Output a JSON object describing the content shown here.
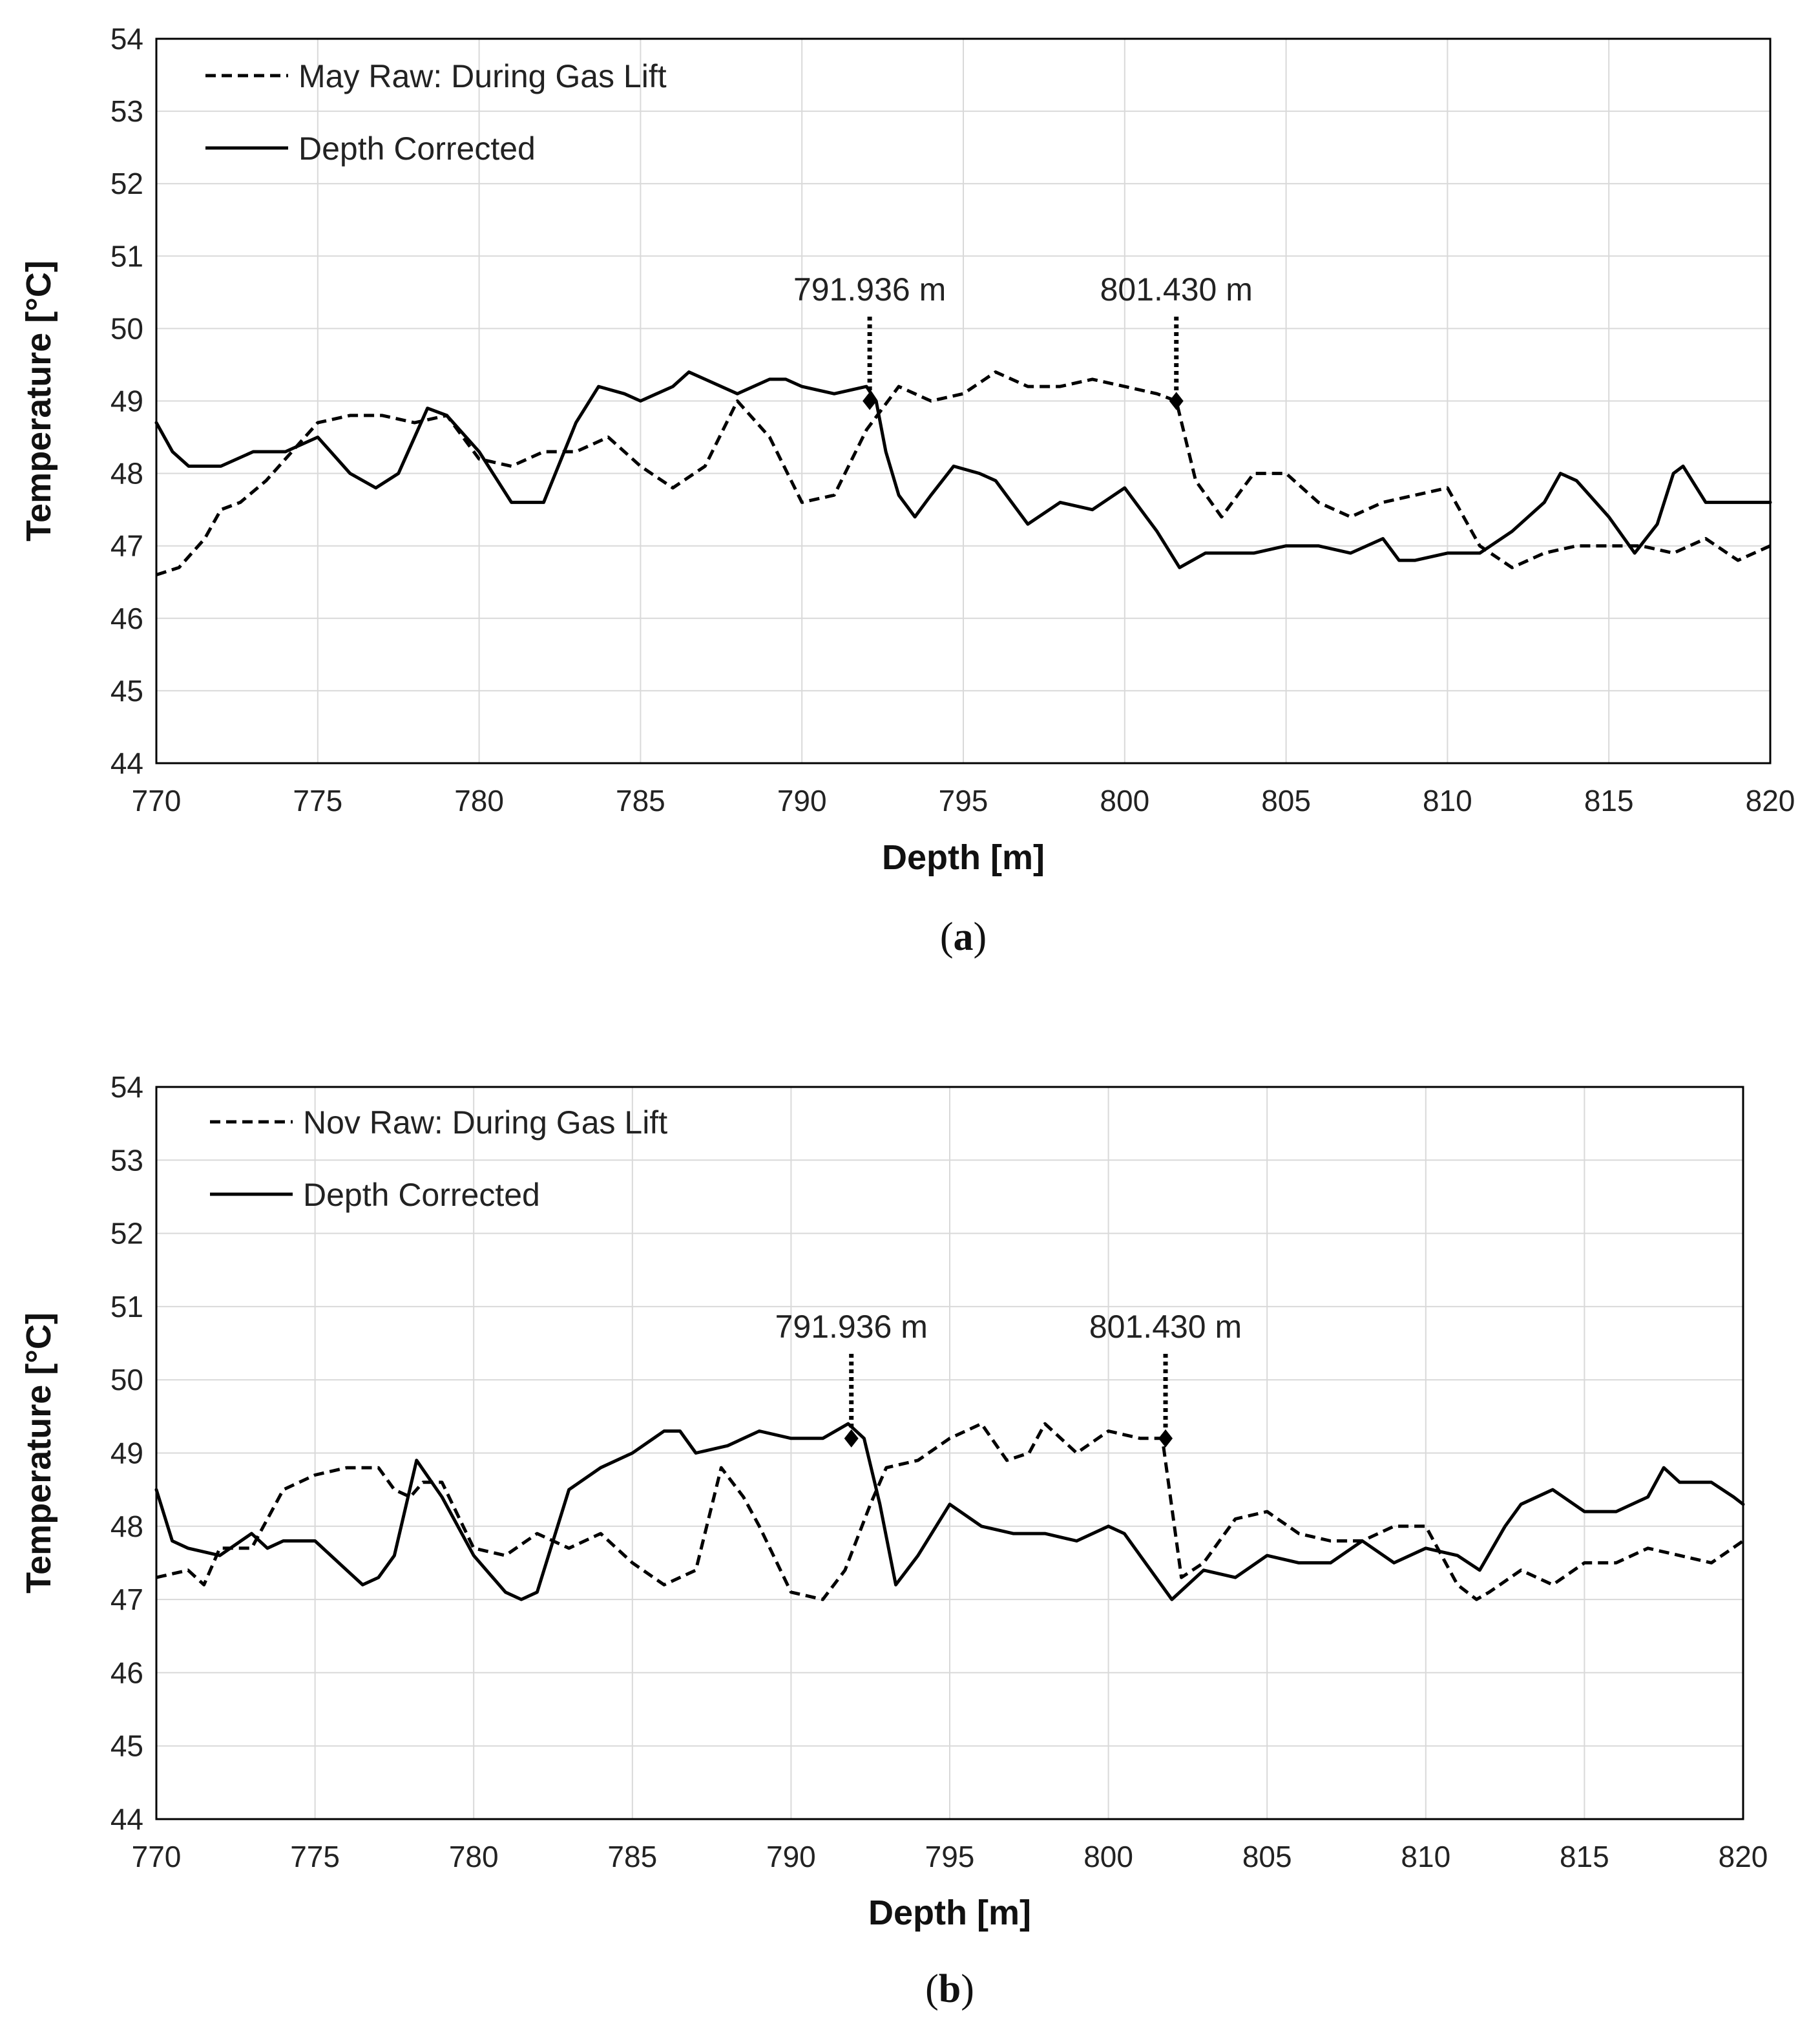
{
  "chart_data": [
    {
      "type": "line",
      "panel_label": "a",
      "xlabel": "Depth [m]",
      "ylabel": "Temperature [°C]",
      "xlim": [
        770,
        820
      ],
      "ylim": [
        44,
        54
      ],
      "xticks": [
        770,
        775,
        780,
        785,
        790,
        795,
        800,
        805,
        810,
        815,
        820
      ],
      "yticks": [
        44,
        45,
        46,
        47,
        48,
        49,
        50,
        51,
        52,
        53,
        54
      ],
      "grid": true,
      "legend_position": "top-left",
      "series": [
        {
          "name": "May Raw: During Gas Lift",
          "style": "dashed",
          "x": [
            770,
            770.7,
            771.5,
            772,
            772.6,
            773.4,
            774.2,
            775,
            776,
            777,
            778,
            779,
            780,
            781,
            782,
            783,
            784,
            785,
            786,
            787,
            788,
            789,
            790,
            791,
            792,
            793,
            794,
            795,
            796,
            797,
            798,
            799,
            800,
            801,
            801.6,
            802.2,
            803,
            804,
            805,
            806,
            807,
            808,
            809,
            810,
            811,
            812,
            813,
            814,
            815,
            816,
            817,
            818,
            819,
            820
          ],
          "y": [
            46.6,
            46.7,
            47.1,
            47.5,
            47.6,
            47.9,
            48.3,
            48.7,
            48.8,
            48.8,
            48.7,
            48.8,
            48.2,
            48.1,
            48.3,
            48.3,
            48.5,
            48.1,
            47.8,
            48.1,
            49.0,
            48.5,
            47.6,
            47.7,
            48.6,
            49.2,
            49.0,
            49.1,
            49.4,
            49.2,
            49.2,
            49.3,
            49.2,
            49.1,
            49.0,
            47.9,
            47.4,
            48.0,
            48.0,
            47.6,
            47.4,
            47.6,
            47.7,
            47.8,
            47.0,
            46.7,
            46.9,
            47.0,
            47.0,
            47.0,
            46.9,
            47.1,
            46.8,
            47.0
          ]
        },
        {
          "name": "Depth Corrected",
          "style": "solid",
          "x": [
            770,
            770.5,
            771,
            771.5,
            772,
            773,
            774,
            775,
            776,
            776.8,
            777.5,
            778.4,
            779,
            780,
            781,
            782,
            783,
            783.7,
            784.5,
            785,
            786,
            786.5,
            787,
            788,
            789,
            789.5,
            790,
            791,
            792,
            792.3,
            792.6,
            793,
            793.5,
            794,
            794.7,
            795.5,
            796,
            797,
            798,
            799,
            800,
            801,
            801.7,
            802.5,
            803,
            804,
            805,
            806,
            807,
            808,
            808.5,
            809,
            810,
            811,
            812,
            813,
            813.5,
            814,
            815,
            815.8,
            816.5,
            817,
            817.3,
            818,
            819,
            820
          ],
          "y": [
            48.7,
            48.3,
            48.1,
            48.1,
            48.1,
            48.3,
            48.3,
            48.5,
            48.0,
            47.8,
            48.0,
            48.9,
            48.8,
            48.3,
            47.6,
            47.6,
            48.7,
            49.2,
            49.1,
            49.0,
            49.2,
            49.4,
            49.3,
            49.1,
            49.3,
            49.3,
            49.2,
            49.1,
            49.2,
            49.0,
            48.3,
            47.7,
            47.4,
            47.7,
            48.1,
            48.0,
            47.9,
            47.3,
            47.6,
            47.5,
            47.8,
            47.2,
            46.7,
            46.9,
            46.9,
            46.9,
            47.0,
            47.0,
            46.9,
            47.1,
            46.8,
            46.8,
            46.9,
            46.9,
            47.2,
            47.6,
            48.0,
            47.9,
            47.4,
            46.9,
            47.3,
            48.0,
            48.1,
            47.6,
            47.6,
            47.6
          ]
        }
      ],
      "annotations": [
        {
          "text": "791.936 m",
          "x": 792.1,
          "y": 49.0
        },
        {
          "text": "801.430 m",
          "x": 801.6,
          "y": 49.0
        }
      ]
    },
    {
      "type": "line",
      "panel_label": "b",
      "xlabel": "Depth [m]",
      "ylabel": "Temperature [°C]",
      "xlim": [
        770,
        820
      ],
      "ylim": [
        44,
        54
      ],
      "xticks": [
        770,
        775,
        780,
        785,
        790,
        795,
        800,
        805,
        810,
        815,
        820
      ],
      "yticks": [
        44,
        45,
        46,
        47,
        48,
        49,
        50,
        51,
        52,
        53,
        54
      ],
      "grid": true,
      "legend_position": "top-left",
      "series": [
        {
          "name": "Nov Raw: During Gas Lift",
          "style": "dashed",
          "x": [
            770,
            771,
            771.5,
            772,
            773,
            774,
            775,
            776,
            777,
            777.5,
            778,
            778.4,
            779,
            780,
            781,
            782,
            783,
            784,
            785,
            786,
            787,
            787.8,
            788.5,
            789,
            790,
            791,
            791.7,
            792.5,
            793,
            794,
            795,
            796,
            796.8,
            797.5,
            798,
            799,
            800,
            801,
            801.7,
            802.3,
            803,
            804,
            805,
            806,
            807,
            808,
            809,
            810,
            811,
            811.6,
            812,
            813,
            814,
            815,
            816,
            817,
            818,
            819,
            820
          ],
          "y": [
            47.3,
            47.4,
            47.2,
            47.7,
            47.7,
            48.5,
            48.7,
            48.8,
            48.8,
            48.5,
            48.4,
            48.6,
            48.6,
            47.7,
            47.6,
            47.9,
            47.7,
            47.9,
            47.5,
            47.2,
            47.4,
            48.8,
            48.4,
            48.0,
            47.1,
            47.0,
            47.4,
            48.3,
            48.8,
            48.9,
            49.2,
            49.4,
            48.9,
            49.0,
            49.4,
            49.0,
            49.3,
            49.2,
            49.2,
            47.3,
            47.5,
            48.1,
            48.2,
            47.9,
            47.8,
            47.8,
            48.0,
            48.0,
            47.2,
            47.0,
            47.1,
            47.4,
            47.2,
            47.5,
            47.5,
            47.7,
            47.6,
            47.5,
            47.8
          ]
        },
        {
          "name": "Depth Corrected",
          "style": "solid",
          "x": [
            770,
            770.5,
            771,
            772,
            773,
            773.5,
            774,
            775,
            776,
            776.5,
            777,
            777.5,
            778.2,
            779,
            780,
            781,
            781.5,
            782,
            783,
            784,
            785,
            786,
            786.5,
            787,
            788,
            789,
            790,
            791,
            791.8,
            792.3,
            792.8,
            793.3,
            794,
            795,
            796,
            797,
            798,
            799,
            800,
            800.5,
            801,
            802,
            803,
            804,
            805,
            806,
            807,
            808,
            809,
            810,
            811,
            811.7,
            812.5,
            813,
            814,
            815,
            816,
            817,
            817.5,
            818,
            819,
            819.7,
            820
          ],
          "y": [
            48.5,
            47.8,
            47.7,
            47.6,
            47.9,
            47.7,
            47.8,
            47.8,
            47.4,
            47.2,
            47.3,
            47.6,
            48.9,
            48.4,
            47.6,
            47.1,
            47.0,
            47.1,
            48.5,
            48.8,
            49.0,
            49.3,
            49.3,
            49.0,
            49.1,
            49.3,
            49.2,
            49.2,
            49.4,
            49.2,
            48.3,
            47.2,
            47.6,
            48.3,
            48.0,
            47.9,
            47.9,
            47.8,
            48.0,
            47.9,
            47.6,
            47.0,
            47.4,
            47.3,
            47.6,
            47.5,
            47.5,
            47.8,
            47.5,
            47.7,
            47.6,
            47.4,
            48.0,
            48.3,
            48.5,
            48.2,
            48.2,
            48.4,
            48.8,
            48.6,
            48.6,
            48.4,
            48.3
          ]
        }
      ],
      "annotations": [
        {
          "text": "791.936 m",
          "x": 791.9,
          "y": 49.2
        },
        {
          "text": "801.430 m",
          "x": 801.8,
          "y": 49.2
        }
      ]
    }
  ]
}
